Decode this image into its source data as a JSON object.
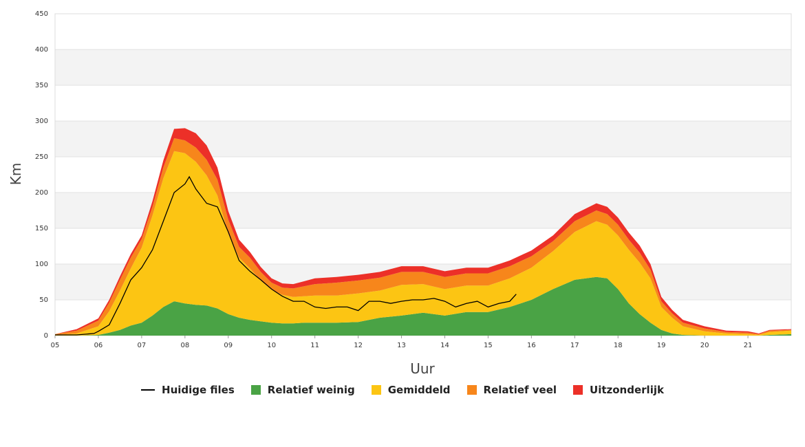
{
  "chart_data": {
    "type": "area",
    "title": "",
    "xlabel": "Uur",
    "ylabel": "Km",
    "ylim": [
      0,
      450
    ],
    "yticks": [
      "0",
      "50",
      "100",
      "150",
      "200",
      "250",
      "300",
      "350",
      "400",
      "450"
    ],
    "xlim": [
      5,
      22
    ],
    "xticks": [
      "05",
      "06",
      "07",
      "08",
      "09",
      "10",
      "11",
      "12",
      "13",
      "14",
      "15",
      "16",
      "17",
      "18",
      "19",
      "20",
      "21"
    ],
    "grid": "horizontal alternating bands",
    "legend_position": "bottom-center",
    "x": [
      5.0,
      5.5,
      6.0,
      6.25,
      6.5,
      6.75,
      7.0,
      7.25,
      7.5,
      7.75,
      8.0,
      8.25,
      8.5,
      8.75,
      9.0,
      9.25,
      9.5,
      9.75,
      10.0,
      10.25,
      10.5,
      10.75,
      11.0,
      11.5,
      12.0,
      12.5,
      13.0,
      13.5,
      14.0,
      14.5,
      15.0,
      15.5,
      16.0,
      16.5,
      17.0,
      17.5,
      17.75,
      18.0,
      18.25,
      18.5,
      18.75,
      19.0,
      19.25,
      19.5,
      20.0,
      20.5,
      21.0,
      21.25,
      21.5,
      22.0
    ],
    "series": [
      {
        "name": "Relatief weinig",
        "color": "#4aa345",
        "values": [
          0,
          0,
          1,
          4,
          8,
          14,
          18,
          28,
          40,
          48,
          45,
          43,
          42,
          38,
          30,
          25,
          22,
          20,
          18,
          17,
          17,
          18,
          18,
          18,
          19,
          25,
          28,
          32,
          28,
          33,
          33,
          40,
          50,
          65,
          78,
          82,
          80,
          65,
          45,
          30,
          18,
          8,
          3,
          1,
          0,
          0,
          0,
          0,
          1,
          2
        ]
      },
      {
        "name": "Gemiddeld",
        "color": "#fcc513",
        "values": [
          1,
          3,
          12,
          30,
          55,
          80,
          105,
          140,
          180,
          210,
          210,
          200,
          182,
          158,
          112,
          84,
          72,
          57,
          46,
          40,
          37,
          37,
          38,
          38,
          40,
          38,
          43,
          40,
          37,
          37,
          37,
          40,
          45,
          53,
          67,
          78,
          75,
          75,
          75,
          72,
          62,
          32,
          22,
          12,
          6,
          3,
          2,
          1,
          4,
          5
        ]
      },
      {
        "name": "Relatief veel",
        "color": "#f7861b",
        "values": [
          1,
          4,
          8,
          12,
          15,
          15,
          12,
          12,
          15,
          18,
          18,
          20,
          22,
          22,
          20,
          15,
          15,
          12,
          10,
          10,
          12,
          14,
          16,
          18,
          18,
          18,
          18,
          17,
          17,
          17,
          17,
          17,
          16,
          14,
          15,
          15,
          15,
          15,
          14,
          14,
          12,
          8,
          6,
          5,
          4,
          2,
          2,
          1,
          2,
          1
        ]
      },
      {
        "name": "Uitzonderlijk",
        "color": "#ec3028",
        "values": [
          0,
          2,
          3,
          4,
          5,
          5,
          5,
          8,
          10,
          13,
          17,
          20,
          20,
          17,
          12,
          10,
          8,
          7,
          6,
          6,
          6,
          7,
          8,
          8,
          8,
          8,
          8,
          8,
          8,
          8,
          8,
          8,
          8,
          8,
          10,
          10,
          10,
          10,
          10,
          10,
          8,
          6,
          5,
          4,
          3,
          2,
          2,
          1,
          1,
          1
        ]
      }
    ],
    "current": {
      "name": "Huidige files",
      "color": "#000000",
      "x": [
        5.0,
        5.5,
        5.9,
        6.0,
        6.25,
        6.5,
        6.75,
        7.0,
        7.25,
        7.5,
        7.75,
        8.0,
        8.1,
        8.25,
        8.5,
        8.75,
        9.0,
        9.25,
        9.5,
        9.75,
        10.0,
        10.25,
        10.5,
        10.75,
        11.0,
        11.25,
        11.5,
        11.75,
        12.0,
        12.25,
        12.5,
        12.75,
        13.0,
        13.25,
        13.5,
        13.75,
        14.0,
        14.25,
        14.5,
        14.75,
        15.0,
        15.25,
        15.5,
        15.65
      ],
      "values": [
        1,
        1,
        3,
        6,
        15,
        45,
        78,
        95,
        120,
        160,
        200,
        212,
        222,
        205,
        185,
        180,
        145,
        105,
        90,
        78,
        65,
        55,
        48,
        48,
        40,
        38,
        40,
        40,
        35,
        48,
        48,
        45,
        48,
        50,
        50,
        52,
        48,
        40,
        45,
        48,
        40,
        45,
        48,
        58
      ]
    }
  },
  "legend": [
    {
      "label": "Huidige files",
      "kind": "line",
      "color": "#000000"
    },
    {
      "label": "Relatief weinig",
      "kind": "box",
      "color": "#4aa345"
    },
    {
      "label": "Gemiddeld",
      "kind": "box",
      "color": "#fcc513"
    },
    {
      "label": "Relatief veel",
      "kind": "box",
      "color": "#f7861b"
    },
    {
      "label": "Uitzonderlijk",
      "kind": "box",
      "color": "#ec3028"
    }
  ]
}
